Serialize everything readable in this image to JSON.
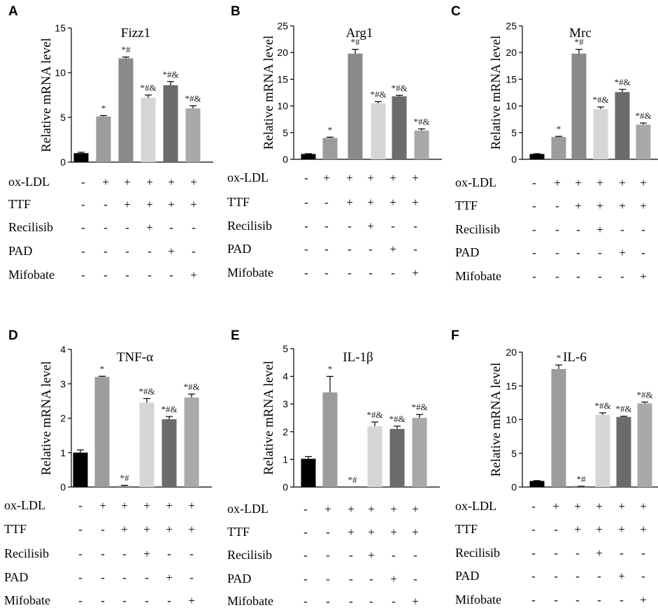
{
  "chart_data": [
    {
      "panel": "A",
      "type": "bar",
      "title": "Fizz1",
      "ylabel": "Relative mRNA level",
      "ylim": [
        0,
        15
      ],
      "yticks": [
        "0",
        "5",
        "10",
        "15"
      ],
      "ytick_values": [
        0,
        5,
        10,
        15
      ],
      "values": [
        1.0,
        5.1,
        11.6,
        7.2,
        8.6,
        6.0
      ],
      "errors": [
        0.1,
        0.1,
        0.15,
        0.3,
        0.4,
        0.3
      ],
      "annotations": [
        "",
        "*",
        "*#",
        "*#&",
        "*#&",
        "*#&"
      ]
    },
    {
      "panel": "B",
      "type": "bar",
      "title": "Arg1",
      "ylabel": "Relative mRNA level",
      "ylim": [
        0,
        25
      ],
      "yticks": [
        "0",
        "5",
        "10",
        "15",
        "20",
        "25"
      ],
      "ytick_values": [
        0,
        5,
        10,
        15,
        20,
        25
      ],
      "values": [
        1.0,
        4.0,
        19.8,
        10.5,
        11.8,
        5.4
      ],
      "errors": [
        0.05,
        0.15,
        0.8,
        0.3,
        0.2,
        0.3
      ],
      "annotations": [
        "",
        "*",
        "*#",
        "*#&",
        "*#&",
        "*#&"
      ]
    },
    {
      "panel": "C",
      "type": "bar",
      "title": "Mrc",
      "ylabel": "Relative mRNA level",
      "ylim": [
        0,
        25
      ],
      "yticks": [
        "0",
        "5",
        "10",
        "15",
        "20",
        "25"
      ],
      "ytick_values": [
        0,
        5,
        10,
        15,
        20,
        25
      ],
      "values": [
        1.0,
        4.2,
        19.8,
        9.4,
        12.6,
        6.5
      ],
      "errors": [
        0.05,
        0.1,
        0.8,
        0.4,
        0.5,
        0.3
      ],
      "annotations": [
        "",
        "*",
        "*#",
        "*#&",
        "*#&",
        "*#&"
      ]
    },
    {
      "panel": "D",
      "type": "bar",
      "title": "TNF-α",
      "ylabel": "Relative mRNA level",
      "ylim": [
        0,
        4
      ],
      "yticks": [
        "0",
        "1",
        "2",
        "3",
        "4"
      ],
      "ytick_values": [
        0,
        1,
        2,
        3,
        4
      ],
      "values": [
        1.0,
        3.2,
        0.03,
        2.45,
        1.97,
        2.6
      ],
      "errors": [
        0.08,
        0.02,
        0.02,
        0.12,
        0.08,
        0.1
      ],
      "annotations": [
        "",
        "*",
        "*#",
        "*#&",
        "*#&",
        "*#&"
      ]
    },
    {
      "panel": "E",
      "type": "bar",
      "title": "IL-1β",
      "ylabel": "Relative mRNA level",
      "ylim": [
        0,
        5
      ],
      "yticks": [
        "0",
        "1",
        "2",
        "3",
        "4",
        "5"
      ],
      "ytick_values": [
        0,
        1,
        2,
        3,
        4,
        5
      ],
      "values": [
        1.02,
        3.42,
        0.0,
        2.2,
        2.1,
        2.5
      ],
      "errors": [
        0.08,
        0.58,
        0.0,
        0.15,
        0.1,
        0.12
      ],
      "annotations": [
        "",
        "*",
        "*#",
        "*#&",
        "*#&",
        "*#&"
      ]
    },
    {
      "panel": "F",
      "type": "bar",
      "title": "IL-6",
      "ylabel": "Relative mRNA level",
      "ylim": [
        0,
        20
      ],
      "yticks": [
        "0",
        "5",
        "10",
        "15",
        "20"
      ],
      "ytick_values": [
        0,
        5,
        10,
        15,
        20
      ],
      "values": [
        0.9,
        17.5,
        0.08,
        10.7,
        10.4,
        12.4
      ],
      "errors": [
        0.05,
        0.6,
        0.04,
        0.3,
        0.1,
        0.2
      ],
      "annotations": [
        "",
        "*",
        "*#",
        "*#&",
        "*#&",
        "*#&"
      ]
    }
  ],
  "treatments": {
    "labels": [
      "ox-LDL",
      "TTF",
      "Recilisib",
      "PAD",
      "Mifobate"
    ],
    "signs": [
      [
        "-",
        "+",
        "+",
        "+",
        "+",
        "+"
      ],
      [
        "-",
        "-",
        "+",
        "+",
        "+",
        "+"
      ],
      [
        "-",
        "-",
        "-",
        "+",
        "-",
        "-"
      ],
      [
        "-",
        "-",
        "-",
        "-",
        "+",
        "-"
      ],
      [
        "-",
        "-",
        "-",
        "-",
        "-",
        "+"
      ]
    ]
  },
  "colors": {
    "bars": [
      "#000000",
      "#9c9c9c",
      "#8a8a8a",
      "#d6d6d6",
      "#6b6b6b",
      "#a9a9a9"
    ],
    "text": "#000000"
  }
}
